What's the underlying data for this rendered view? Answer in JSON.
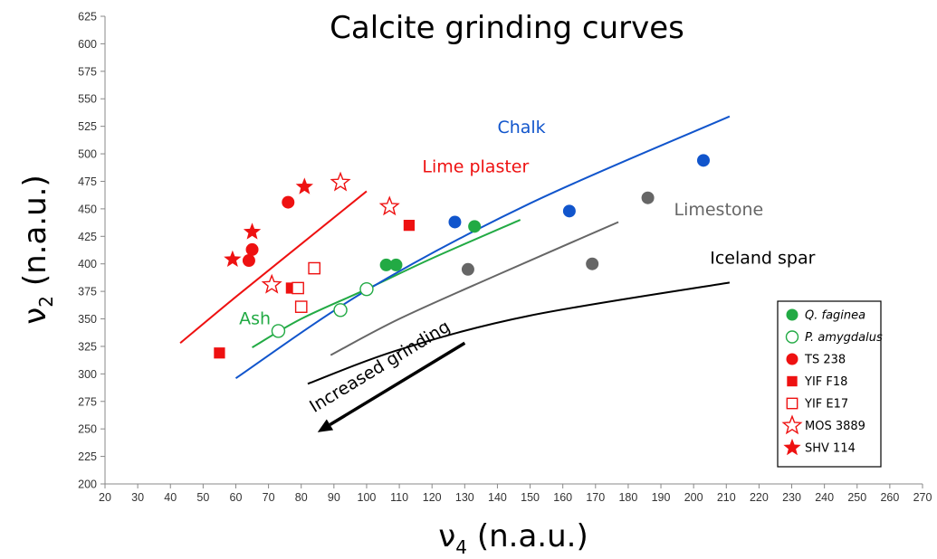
{
  "chart_data": {
    "type": "scatter",
    "title": "Calcite grinding curves",
    "xlabel": {
      "symbol": "ν",
      "sub": "4",
      "unit": " (n.a.u.)"
    },
    "ylabel": {
      "symbol": "ν",
      "sub": "2",
      "unit": " (n.a.u.)"
    },
    "xlim": [
      20,
      270
    ],
    "ylim": [
      200,
      625
    ],
    "xticks": [
      20,
      30,
      40,
      50,
      60,
      70,
      80,
      90,
      100,
      110,
      120,
      130,
      140,
      150,
      160,
      170,
      180,
      190,
      200,
      210,
      220,
      230,
      240,
      250,
      260,
      270
    ],
    "yticks": [
      200,
      225,
      250,
      275,
      300,
      325,
      350,
      375,
      400,
      425,
      450,
      475,
      500,
      525,
      550,
      575,
      600,
      625
    ],
    "grid": false,
    "legend_position": "bottom-right",
    "colors": {
      "red": "#ee1111",
      "green": "#22aa44",
      "blue": "#1155cc",
      "gray": "#666666",
      "black": "#000000"
    },
    "curves": [
      {
        "label": "Lime plaster",
        "color": "#ee1111",
        "points": [
          [
            43,
            328
          ],
          [
            60,
            370
          ],
          [
            80,
            418
          ],
          [
            100,
            466
          ]
        ]
      },
      {
        "label": "Ash",
        "color": "#22aa44",
        "points": [
          [
            65,
            324
          ],
          [
            80,
            350
          ],
          [
            100,
            377
          ],
          [
            120,
            405
          ],
          [
            147,
            440
          ]
        ]
      },
      {
        "label": "Chalk",
        "color": "#1155cc",
        "points": [
          [
            60,
            296
          ],
          [
            100,
            376
          ],
          [
            150,
            455
          ],
          [
            211,
            534
          ]
        ]
      },
      {
        "label": "Limestone",
        "color": "#666666",
        "points": [
          [
            89,
            317
          ],
          [
            110,
            350
          ],
          [
            140,
            390
          ],
          [
            177,
            438
          ]
        ]
      },
      {
        "label": "Iceland spar",
        "color": "#000000",
        "points": [
          [
            82,
            291
          ],
          [
            110,
            322
          ],
          [
            150,
            353
          ],
          [
            211,
            383
          ]
        ]
      }
    ],
    "curve_label_positions": {
      "Lime plaster": [
        117,
        483
      ],
      "Ash": [
        61,
        345
      ],
      "Chalk": [
        140,
        519
      ],
      "Limestone": [
        194,
        444
      ],
      "Iceland spar": [
        205,
        400
      ]
    },
    "series": [
      {
        "name": "Q. faginea",
        "italic": true,
        "marker": "circle",
        "filled": true,
        "color": "#22aa44",
        "points": [
          [
            106,
            399
          ],
          [
            109,
            399
          ],
          [
            133,
            434
          ]
        ]
      },
      {
        "name": "P. amygdalus",
        "italic": true,
        "marker": "circle",
        "filled": false,
        "color": "#22aa44",
        "points": [
          [
            73,
            339
          ],
          [
            92,
            358
          ],
          [
            100,
            377
          ]
        ]
      },
      {
        "name": "TS 238",
        "italic": false,
        "marker": "circle",
        "filled": true,
        "color": "#ee1111",
        "points": [
          [
            64,
            403
          ],
          [
            65,
            413
          ],
          [
            76,
            456
          ]
        ]
      },
      {
        "name": "YIF F18",
        "italic": false,
        "marker": "square",
        "filled": true,
        "color": "#ee1111",
        "points": [
          [
            55,
            319
          ],
          [
            77,
            378
          ],
          [
            113,
            435
          ]
        ]
      },
      {
        "name": "YIF E17",
        "italic": false,
        "marker": "square",
        "filled": false,
        "color": "#ee1111",
        "points": [
          [
            79,
            378
          ],
          [
            80,
            361
          ],
          [
            84,
            396
          ]
        ]
      },
      {
        "name": "MOS 3889",
        "italic": false,
        "marker": "star",
        "filled": false,
        "color": "#ee1111",
        "points": [
          [
            71,
            381
          ],
          [
            92,
            474
          ],
          [
            107,
            452
          ]
        ]
      },
      {
        "name": "SHV 114",
        "italic": false,
        "marker": "star",
        "filled": true,
        "color": "#ee1111",
        "points": [
          [
            59,
            404
          ],
          [
            65,
            429
          ],
          [
            81,
            470
          ]
        ]
      }
    ],
    "chalk_points": {
      "color": "#1155cc",
      "points": [
        [
          127,
          438
        ],
        [
          162,
          448
        ],
        [
          203,
          494
        ]
      ]
    },
    "limestone_points": {
      "color": "#666666",
      "points": [
        [
          131,
          395
        ],
        [
          169,
          400
        ],
        [
          186,
          460
        ]
      ]
    },
    "annotation": {
      "text": "Increased grinding",
      "from": [
        130,
        328
      ],
      "to": [
        85,
        247
      ]
    }
  }
}
